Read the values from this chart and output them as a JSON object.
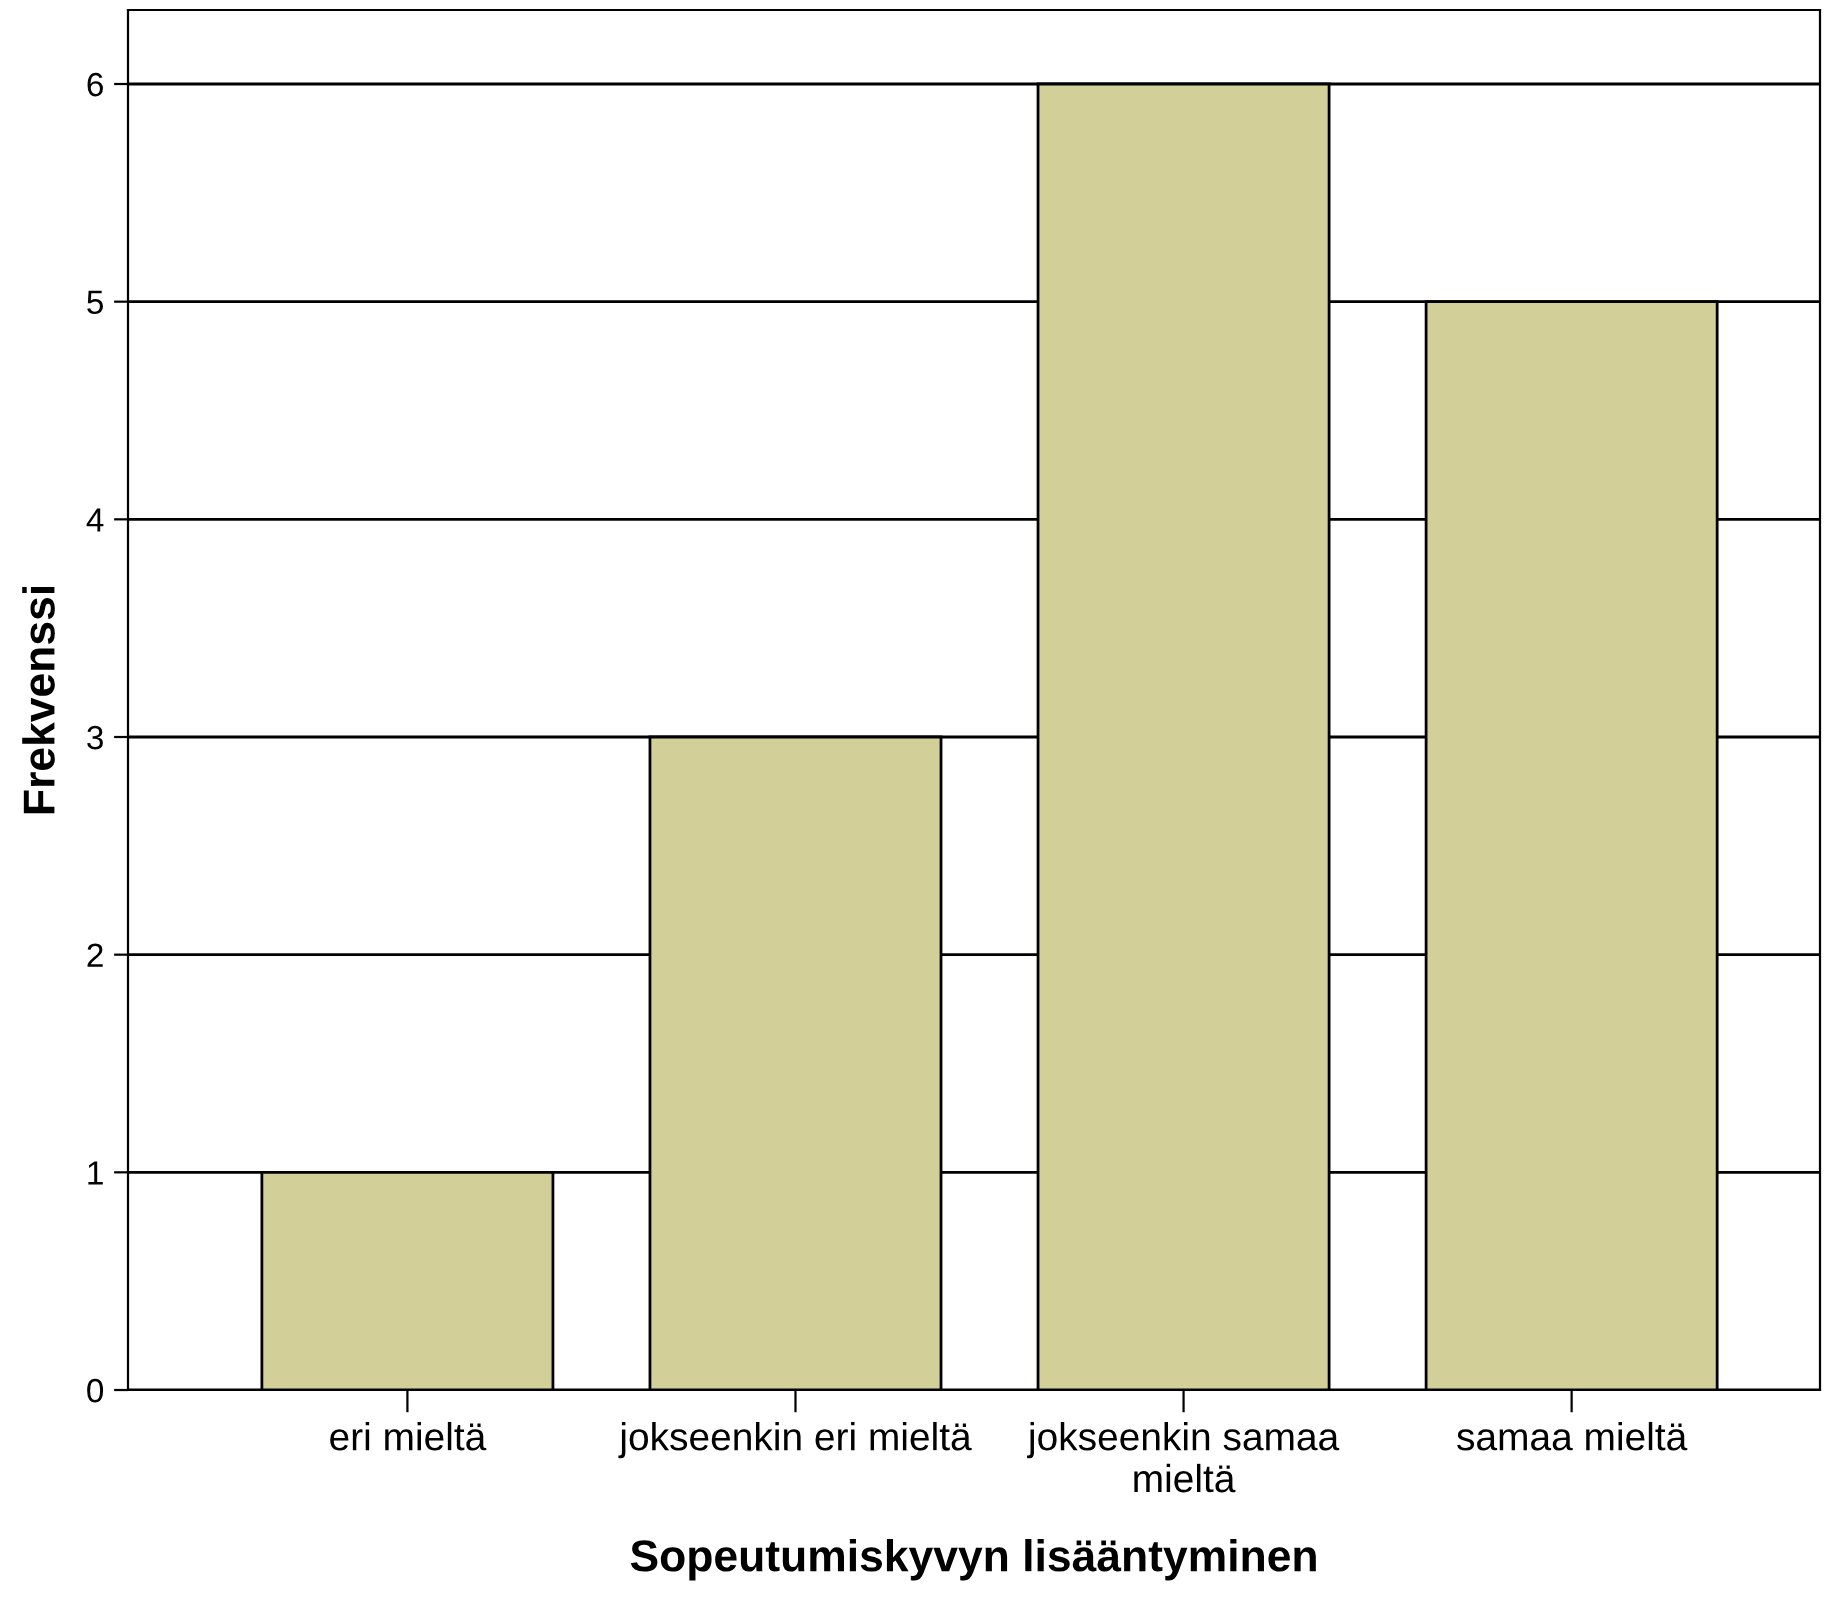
{
  "chart_data": {
    "type": "bar",
    "xlabel": "Sopeutumiskyvyn lisääntyminen",
    "ylabel": "Frekvenssi",
    "categories": [
      "eri mieltä",
      "jokseenkin eri mieltä",
      "jokseenkin samaa\nmieltä",
      "samaa mieltä"
    ],
    "values": [
      1,
      3,
      6,
      5
    ],
    "color": "#d3cf98",
    "ylim": [
      0,
      6.34
    ],
    "yticks": [
      0,
      1,
      2,
      3,
      4,
      5,
      6
    ],
    "grid": "y",
    "legend": false
  }
}
